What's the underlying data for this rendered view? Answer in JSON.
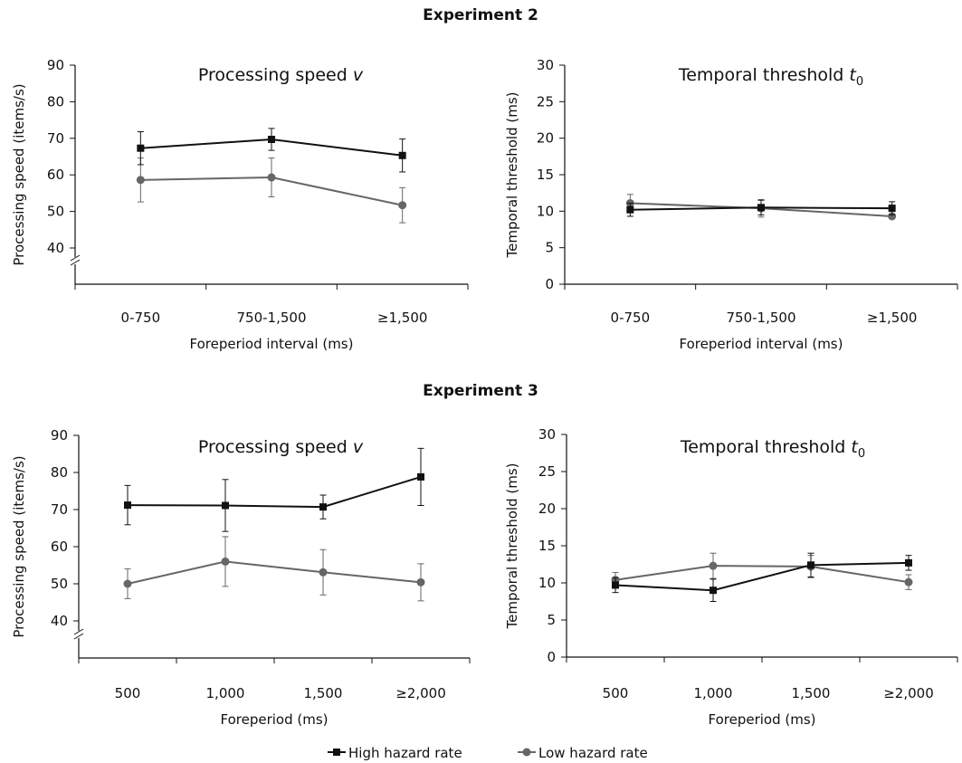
{
  "legend": {
    "high": "High hazard rate",
    "low": "Low hazard rate"
  },
  "colors": {
    "high": "#111111",
    "low": "#666666"
  },
  "experiments": [
    {
      "title": "Experiment 2"
    },
    {
      "title": "Experiment 3"
    }
  ],
  "chart_data": [
    {
      "type": "line",
      "experiment": "Experiment 2",
      "title": "Processing speed v",
      "title_main": "Processing speed ",
      "title_symbol": "v",
      "title_sub": "",
      "xlabel": "Foreperiod interval (ms)",
      "ylabel": "Processing speed (items/s)",
      "categories": [
        "0-750",
        "750-1,500",
        "≥1,500"
      ],
      "ylim": [
        30,
        90
      ],
      "yticks": [
        40,
        50,
        60,
        70,
        80,
        90
      ],
      "axis_break": true,
      "series": [
        {
          "name": "High hazard rate",
          "marker": "square",
          "values": [
            67.3,
            69.7,
            65.3
          ],
          "errors": [
            4.5,
            3.0,
            4.5
          ]
        },
        {
          "name": "Low hazard rate",
          "marker": "circle",
          "values": [
            58.6,
            59.3,
            51.7
          ],
          "errors": [
            6.0,
            5.3,
            4.8
          ]
        }
      ]
    },
    {
      "type": "line",
      "experiment": "Experiment 2",
      "title": "Temporal threshold t0",
      "title_main": "Temporal threshold ",
      "title_symbol": "t",
      "title_sub": "0",
      "xlabel": "Foreperiod interval (ms)",
      "ylabel": "Temporal threshold (ms)",
      "categories": [
        "0-750",
        "750-1,500",
        "≥1,500"
      ],
      "ylim": [
        0,
        30
      ],
      "yticks": [
        0,
        5,
        10,
        15,
        20,
        25,
        30
      ],
      "axis_break": false,
      "series": [
        {
          "name": "High hazard rate",
          "marker": "square",
          "values": [
            10.2,
            10.5,
            10.4
          ],
          "errors": [
            0.9,
            1.0,
            0.9
          ]
        },
        {
          "name": "Low hazard rate",
          "marker": "circle",
          "values": [
            11.1,
            10.4,
            9.3
          ],
          "errors": [
            1.2,
            1.2,
            0.3
          ]
        }
      ]
    },
    {
      "type": "line",
      "experiment": "Experiment 3",
      "title": "Processing speed v",
      "title_main": "Processing speed ",
      "title_symbol": "v",
      "title_sub": "",
      "xlabel": "Foreperiod (ms)",
      "ylabel": "Processing speed (items/s)",
      "categories": [
        "500",
        "1,000",
        "1,500",
        "≥2,000"
      ],
      "ylim": [
        30,
        90
      ],
      "yticks": [
        40,
        50,
        60,
        70,
        80,
        90
      ],
      "axis_break": true,
      "series": [
        {
          "name": "High hazard rate",
          "marker": "square",
          "values": [
            71.2,
            71.1,
            70.7,
            78.8
          ],
          "errors": [
            5.3,
            7.0,
            3.2,
            7.7
          ]
        },
        {
          "name": "Low hazard rate",
          "marker": "circle",
          "values": [
            50.0,
            56.0,
            53.1,
            50.4
          ],
          "errors": [
            4.0,
            6.7,
            6.1,
            5.0
          ]
        }
      ]
    },
    {
      "type": "line",
      "experiment": "Experiment 3",
      "title": "Temporal threshold t0",
      "title_main": "Temporal threshold ",
      "title_symbol": "t",
      "title_sub": "0",
      "xlabel": "Foreperiod (ms)",
      "ylabel": "Temporal threshold (ms)",
      "categories": [
        "500",
        "1,000",
        "1,500",
        "≥2,000"
      ],
      "ylim": [
        0,
        30
      ],
      "yticks": [
        0,
        5,
        10,
        15,
        20,
        25,
        30
      ],
      "axis_break": false,
      "series": [
        {
          "name": "High hazard rate",
          "marker": "square",
          "values": [
            9.7,
            9.0,
            12.4,
            12.7
          ],
          "errors": [
            1.0,
            1.5,
            1.6,
            1.0
          ]
        },
        {
          "name": "Low hazard rate",
          "marker": "circle",
          "values": [
            10.4,
            12.3,
            12.2,
            10.1
          ],
          "errors": [
            1.0,
            1.7,
            1.5,
            1.0
          ]
        }
      ]
    }
  ]
}
